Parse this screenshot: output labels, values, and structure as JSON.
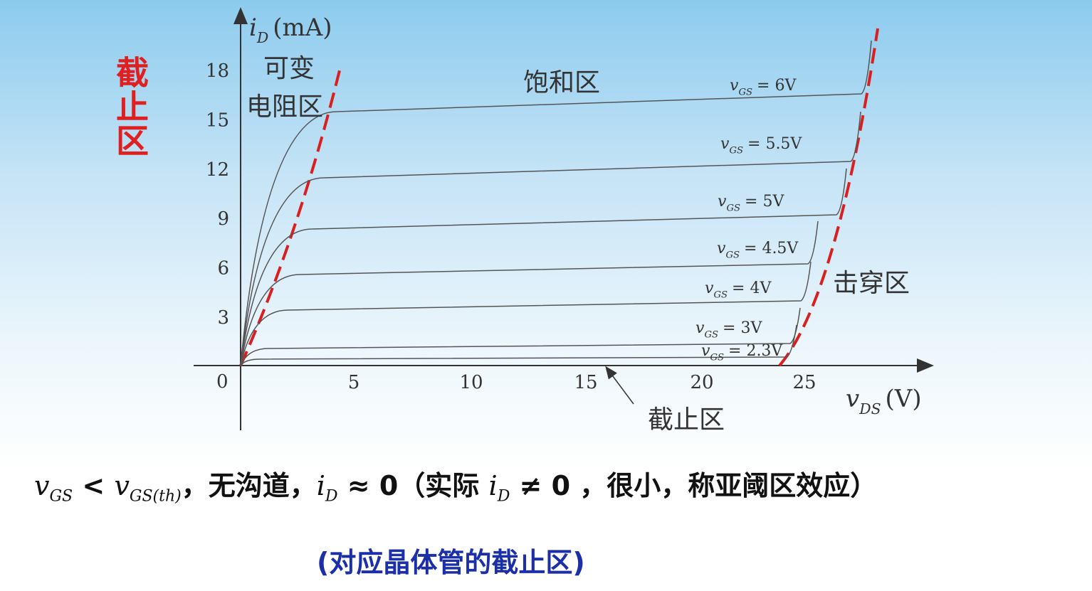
{
  "side_label": "截止区",
  "axes": {
    "y_label": {
      "var": "i",
      "sub": "D",
      "unit": "(mA)"
    },
    "x_label": {
      "var": "v",
      "sub": "DS",
      "unit": "(V)"
    },
    "origin": "0",
    "x_ticks": [
      "5",
      "10",
      "15",
      "20",
      "25"
    ],
    "y_ticks": [
      "3",
      "6",
      "9",
      "12",
      "15",
      "18"
    ]
  },
  "curves": [
    {
      "var": "v",
      "sub": "GS",
      "value": "= 2.3V"
    },
    {
      "var": "v",
      "sub": "GS",
      "value": "= 3V"
    },
    {
      "var": "v",
      "sub": "GS",
      "value": "= 4V"
    },
    {
      "var": "v",
      "sub": "GS",
      "value": "= 4.5V"
    },
    {
      "var": "v",
      "sub": "GS",
      "value": "= 5V"
    },
    {
      "var": "v",
      "sub": "GS",
      "value": "= 5.5V"
    },
    {
      "var": "v",
      "sub": "GS",
      "value": "= 6V"
    }
  ],
  "regions": {
    "ohmic": [
      "可变",
      "电阻区"
    ],
    "saturation": "饱和区",
    "breakdown": "击穿区",
    "cutoff": "截止区"
  },
  "bottom_line": [
    {
      "text": "v",
      "sub": "GS"
    },
    {
      "text": " < "
    },
    {
      "text": "v",
      "sub": "GS(th)"
    },
    {
      "text": "，无沟道，"
    },
    {
      "text": "i",
      "sub": "D"
    },
    {
      "text": " ≈ 0（实际 "
    },
    {
      "text": "i",
      "sub": "D"
    },
    {
      "text": " ≠ 0 ，很小，称亚阈区效应）"
    }
  ],
  "note": "(对应晶体管的截止区)"
}
